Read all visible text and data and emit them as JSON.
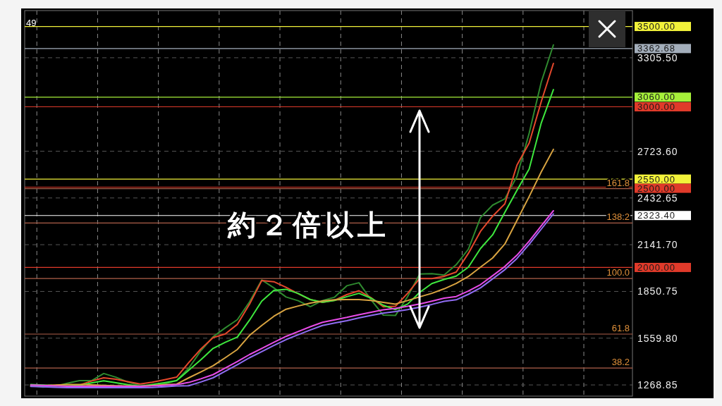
{
  "chart_data": {
    "type": "line",
    "categories": [
      null,
      null,
      null,
      null,
      null,
      null,
      null,
      null,
      null,
      null,
      null,
      null,
      null,
      null,
      null,
      null,
      null,
      null,
      null,
      null,
      null,
      null,
      null,
      null,
      null,
      null,
      null,
      null,
      null,
      null,
      null,
      null,
      null,
      null,
      null,
      null,
      null,
      null,
      null,
      null,
      null,
      null,
      null,
      null,
      null,
      null,
      null,
      null,
      null,
      null
    ],
    "ylim": [
      1199,
      3599
    ],
    "yticks": [
      {
        "value": 1268.85,
        "label": "1268.85"
      },
      {
        "value": 1559.8,
        "label": "1559.80"
      },
      {
        "value": 1850.75,
        "label": "1850.75"
      },
      {
        "value": 2141.7,
        "label": "2141.70"
      },
      {
        "value": 2432.65,
        "label": "2432.65"
      },
      {
        "value": 2723.6,
        "label": "2723.60"
      },
      {
        "value": 3305.5,
        "label": "3305.50"
      }
    ],
    "tick_labels": "y",
    "grid": true,
    "marker": "none",
    "line_style": "solid",
    "series": [
      {
        "color": "#2f8a2f",
        "values": [
          1265,
          1255,
          1260,
          1279,
          1295,
          1295,
          1340,
          1317,
          1286,
          1267,
          1265,
          1275,
          1297,
          1373,
          1482,
          1568,
          1624,
          1675,
          1786,
          1922,
          1873,
          1816,
          1793,
          1756,
          1794,
          1815,
          1886,
          1905,
          1799,
          1703,
          1701,
          1819,
          1959,
          1961,
          1953,
          2017,
          2114,
          2311,
          2388,
          2427,
          2567,
          2835,
          3155,
          3385,
          null,
          null,
          null,
          null,
          null,
          null
        ]
      },
      {
        "color": "#e5482c",
        "values": [
          null,
          null,
          null,
          1260,
          1268,
          1293,
          1313,
          1304,
          1289,
          1275,
          1286,
          1301,
          1317,
          1408,
          1493,
          1563,
          1586,
          1646,
          1771,
          1918,
          1911,
          1876,
          1837,
          1800,
          1783,
          1796,
          1831,
          1855,
          1812,
          1755,
          1758,
          1839,
          1931,
          1931,
          1945,
          1971,
          2088,
          2225,
          2319,
          2396,
          2637,
          2774,
          3033,
          3270,
          null,
          null,
          null,
          null,
          null,
          null
        ]
      },
      {
        "color": "#3ee83e",
        "values": [
          1271,
          1268,
          1265,
          1262,
          1266,
          1281,
          1294,
          1282,
          1270,
          1261,
          1271,
          1283,
          1295,
          1360,
          1426,
          1496,
          1534,
          1567,
          1672,
          1790,
          1857,
          1864,
          1838,
          1800,
          1784,
          1795,
          1818,
          1839,
          1809,
          1765,
          1738,
          1772,
          1845,
          1900,
          1925,
          1946,
          2002,
          2118,
          2203,
          2343,
          2480,
          2613,
          2900,
          3107,
          null,
          null,
          null,
          null,
          null,
          null
        ]
      },
      {
        "color": "#d9a441",
        "values": [
          1262,
          1265,
          1268,
          1272,
          1272,
          1269,
          1266,
          1264,
          1262,
          1260,
          1265,
          1270,
          1274,
          1313,
          1350,
          1388,
          1438,
          1490,
          1577,
          1639,
          1696,
          1740,
          1760,
          1778,
          1791,
          1799,
          1800,
          1800,
          1795,
          1783,
          1772,
          1794,
          1817,
          1839,
          1867,
          1900,
          1944,
          2002,
          2059,
          2146,
          2293,
          2441,
          2595,
          2735,
          null,
          null,
          null,
          null,
          null,
          null
        ]
      },
      {
        "color": "#e84be8",
        "values": [
          1268,
          1266,
          1263,
          1261,
          1260,
          1260,
          1260,
          1260,
          1260,
          1260,
          1262,
          1266,
          1271,
          1284,
          1307,
          1333,
          1374,
          1415,
          1458,
          1496,
          1534,
          1571,
          1601,
          1631,
          1659,
          1674,
          1689,
          1706,
          1721,
          1736,
          1745,
          1758,
          1773,
          1790,
          1809,
          1819,
          1853,
          1893,
          1949,
          2006,
          2076,
          2164,
          2259,
          2353,
          null,
          null,
          null,
          null,
          null,
          null
        ]
      },
      {
        "color": "#8f6cf2",
        "values": [
          1259,
          1257,
          1254,
          1252,
          1251,
          1251,
          1251,
          1251,
          1251,
          1251,
          1253,
          1257,
          1262,
          1264,
          1287,
          1313,
          1354,
          1395,
          1438,
          1476,
          1514,
          1551,
          1581,
          1611,
          1639,
          1654,
          1669,
          1686,
          1701,
          1716,
          1725,
          1738,
          1753,
          1770,
          1789,
          1799,
          1833,
          1873,
          1929,
          1986,
          2056,
          2144,
          2239,
          2333,
          null,
          null,
          null,
          null,
          null,
          null
        ]
      }
    ],
    "ref_lines": [
      {
        "axis": "y",
        "value": 3500,
        "label": "3500.00",
        "color": "#f2f23a"
      },
      {
        "axis": "y",
        "value": 3362.68,
        "label": "3362.68",
        "color": "#a3aebb"
      },
      {
        "axis": "y",
        "value": 3060,
        "label": "3060.00",
        "color": "#a6f03a"
      },
      {
        "axis": "y",
        "value": 3000,
        "label": "3000.00",
        "color": "#e03a2a"
      },
      {
        "axis": "y",
        "value": 2550,
        "label": "2550.00",
        "color": "#f2f23a"
      },
      {
        "axis": "y",
        "value": 2500,
        "label": "2500.00",
        "color": "#e03a2a"
      },
      {
        "axis": "y",
        "value": 2323.4,
        "label": "2323.40",
        "color": "#ffffff"
      },
      {
        "axis": "y",
        "value": 2000,
        "label": "2000.00",
        "color": "#e03a2a"
      },
      {
        "axis": "y",
        "value": 2491,
        "color": "#b0604a"
      },
      {
        "axis": "y",
        "value": 2277,
        "color": "#b0604a"
      },
      {
        "axis": "y",
        "value": 1931,
        "color": "#b0604a"
      },
      {
        "axis": "y",
        "value": 1585,
        "color": "#b0604a"
      },
      {
        "axis": "y",
        "value": 1374,
        "color": "#b0604a"
      }
    ],
    "annotations": [
      "約２倍以上",
      "49",
      {
        "text": "161.8",
        "y": 2491
      },
      {
        "text": "138.2",
        "y": 2277
      },
      {
        "text": "100.0",
        "y": 1931
      },
      {
        "text": "61.8",
        "y": 1585
      },
      {
        "text": "38.2",
        "y": 1374
      }
    ]
  }
}
